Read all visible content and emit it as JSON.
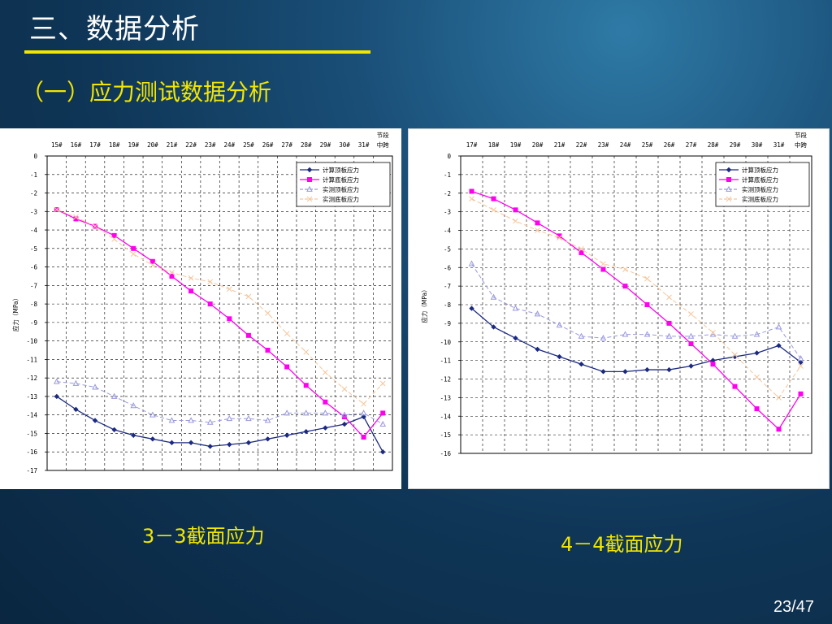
{
  "slide": {
    "title": "三、数据分析",
    "subtitle": "（一）应力测试数据分析",
    "page": "23/47"
  },
  "chart_data": [
    {
      "type": "line",
      "caption": "3－3截面应力",
      "ylabel": "应力（MPa）",
      "ylim": [
        -17,
        0
      ],
      "grid": true,
      "legend_position": "top-right",
      "categories": [
        "15#",
        "16#",
        "17#",
        "18#",
        "19#",
        "20#",
        "21#",
        "22#",
        "23#",
        "24#",
        "25#",
        "26#",
        "27#",
        "28#",
        "29#",
        "30#",
        "31#",
        "节段中跨"
      ],
      "series": [
        {
          "name": "计算顶板应力",
          "color": "#1b2a80",
          "marker": "diamond",
          "dash": "solid",
          "values": [
            -13,
            -13.7,
            -14.3,
            -14.8,
            -15.1,
            -15.3,
            -15.5,
            -15.5,
            -15.7,
            -15.6,
            -15.5,
            -15.3,
            -15.1,
            -14.9,
            -14.7,
            -14.5,
            -14.1,
            -16
          ]
        },
        {
          "name": "计算底板应力",
          "color": "#ff00ee",
          "marker": "square",
          "dash": "solid",
          "values": [
            -2.9,
            -3.4,
            -3.8,
            -4.3,
            -5.0,
            -5.7,
            -6.5,
            -7.3,
            -8.0,
            -8.8,
            -9.7,
            -10.5,
            -11.4,
            -12.4,
            -13.3,
            -14.1,
            -15.2,
            -13.9
          ]
        },
        {
          "name": "实测顶板应力",
          "color": "#9999dd",
          "marker": "triangle",
          "dash": "dashed",
          "values": [
            -12.2,
            -12.3,
            -12.5,
            -13.0,
            -13.5,
            -14.0,
            -14.3,
            -14.3,
            -14.4,
            -14.2,
            -14.2,
            -14.3,
            -13.9,
            -13.9,
            -13.9,
            -14.0,
            -13.9,
            -14.5
          ]
        },
        {
          "name": "实测底板应力",
          "color": "#f5c69b",
          "marker": "x",
          "dash": "dashed",
          "values": [
            -2.9,
            -3.3,
            -3.8,
            -4.5,
            -5.3,
            -5.9,
            -6.3,
            -6.6,
            -6.8,
            -7.2,
            -7.6,
            -8.5,
            -9.6,
            -10.6,
            -11.7,
            -12.6,
            -13.4,
            -12.3
          ]
        }
      ]
    },
    {
      "type": "line",
      "caption": "4－4截面应力",
      "ylabel": "应力（MPa）",
      "ylim": [
        -16,
        0
      ],
      "grid": true,
      "legend_position": "top-right",
      "categories": [
        "17#",
        "18#",
        "19#",
        "20#",
        "21#",
        "22#",
        "23#",
        "24#",
        "25#",
        "26#",
        "27#",
        "28#",
        "29#",
        "30#",
        "31#",
        "节段中跨"
      ],
      "series": [
        {
          "name": "计算顶板应力",
          "color": "#1b2a80",
          "marker": "diamond",
          "dash": "solid",
          "values": [
            -8.2,
            -9.2,
            -9.8,
            -10.4,
            -10.8,
            -11.2,
            -11.6,
            -11.6,
            -11.5,
            -11.5,
            -11.3,
            -11.0,
            -10.8,
            -10.6,
            -10.2,
            -11.1
          ]
        },
        {
          "name": "计算底板应力",
          "color": "#ff00ee",
          "marker": "square",
          "dash": "solid",
          "values": [
            -1.9,
            -2.3,
            -2.9,
            -3.6,
            -4.3,
            -5.2,
            -6.1,
            -7.0,
            -8.0,
            -9.0,
            -10.1,
            -11.2,
            -12.4,
            -13.6,
            -14.7,
            -12.8
          ]
        },
        {
          "name": "实测顶板应力",
          "color": "#9999dd",
          "marker": "triangle",
          "dash": "dashed",
          "values": [
            -5.8,
            -7.6,
            -8.2,
            -8.5,
            -9.1,
            -9.7,
            -9.8,
            -9.6,
            -9.6,
            -9.7,
            -9.7,
            -9.6,
            -9.7,
            -9.6,
            -9.2,
            -10.9
          ]
        },
        {
          "name": "实测底板应力",
          "color": "#f5c69b",
          "marker": "x",
          "dash": "dashed",
          "values": [
            -2.3,
            -2.9,
            -3.5,
            -4.0,
            -4.4,
            -5.0,
            -5.8,
            -6.1,
            -6.6,
            -7.6,
            -8.5,
            -9.5,
            -10.7,
            -11.9,
            -13.0,
            -11.3
          ]
        }
      ]
    }
  ]
}
